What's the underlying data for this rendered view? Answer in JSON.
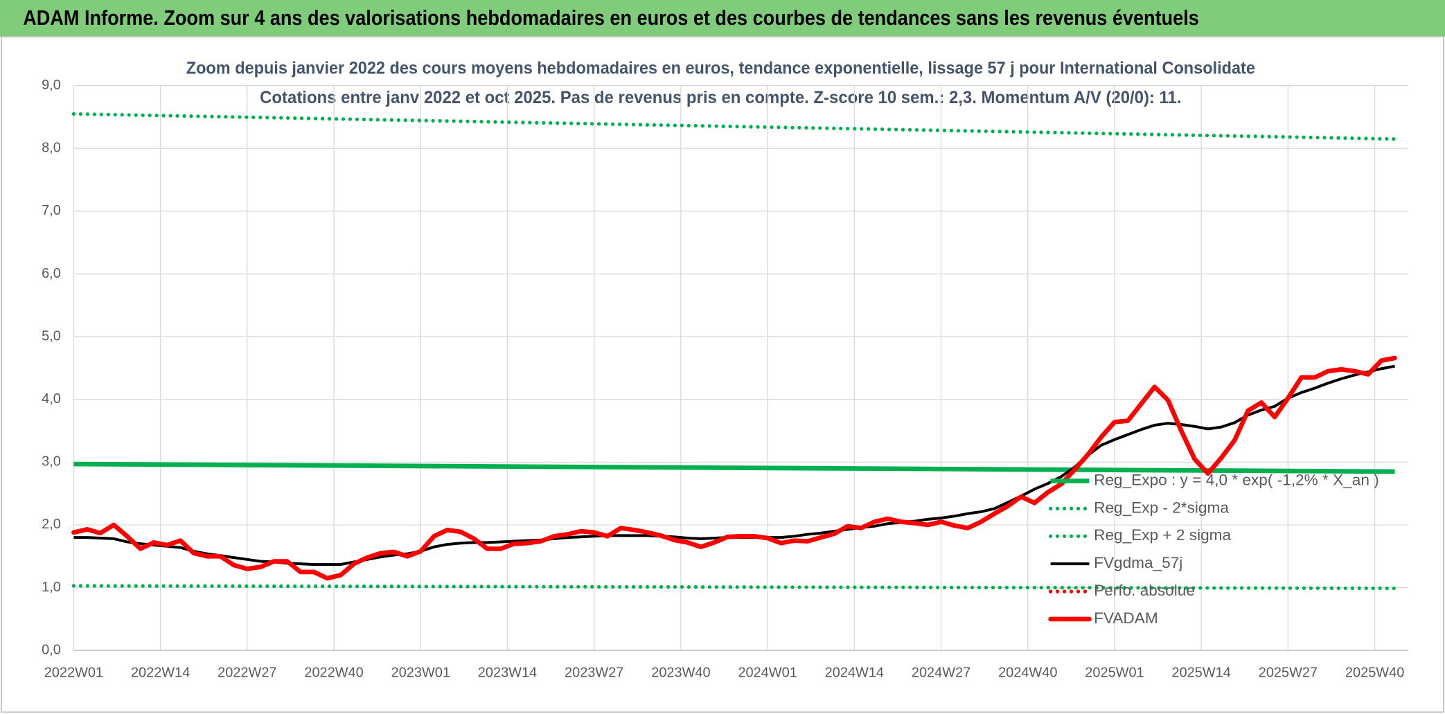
{
  "chart_data": {
    "type": "line",
    "title": "ADAM Informe. Zoom sur 4 ans des valorisations hebdomadaires en euros et des courbes de tendances sans les revenus éventuels",
    "subtitle": [
      "Zoom depuis janvier 2022 des cours moyens hebdomadaires en euros, tendance exponentielle, lissage 57 j pour International Consolidate",
      "Cotations entre janv 2022 et oct 2025. Pas de revenus pris en compte. Z-score 10 sem.: 2,3. Momentum A/V (20/0): 11."
    ],
    "x": [
      0,
      2,
      4,
      6,
      8,
      10,
      12,
      14,
      16,
      18,
      20,
      22,
      24,
      26,
      28,
      30,
      32,
      34,
      36,
      38,
      40,
      42,
      44,
      46,
      48,
      50,
      52,
      54,
      56,
      58,
      60,
      62,
      64,
      66,
      68,
      70,
      72,
      74,
      76,
      78,
      80,
      82,
      84,
      86,
      88,
      90,
      92,
      94,
      96,
      98,
      100,
      102,
      104,
      106,
      108,
      110,
      112,
      114,
      116,
      118,
      120,
      122,
      124,
      126,
      128,
      130,
      132,
      134,
      136,
      138,
      140,
      142,
      144,
      146,
      148,
      150,
      152,
      154,
      156,
      158,
      160,
      162,
      164,
      166,
      168,
      170,
      172,
      174,
      176,
      178,
      180,
      182,
      184,
      186,
      188,
      190,
      192,
      194,
      196,
      198
    ],
    "xlim": [
      0,
      200
    ],
    "xticks": [
      {
        "value": 0,
        "label": "2022W01"
      },
      {
        "value": 13,
        "label": "2022W14"
      },
      {
        "value": 26,
        "label": "2022W27"
      },
      {
        "value": 39,
        "label": "2022W40"
      },
      {
        "value": 52,
        "label": "2023W01"
      },
      {
        "value": 65,
        "label": "2023W14"
      },
      {
        "value": 78,
        "label": "2023W27"
      },
      {
        "value": 91,
        "label": "2023W40"
      },
      {
        "value": 104,
        "label": "2024W01"
      },
      {
        "value": 117,
        "label": "2024W14"
      },
      {
        "value": 130,
        "label": "2024W27"
      },
      {
        "value": 143,
        "label": "2024W40"
      },
      {
        "value": 156,
        "label": "2025W01"
      },
      {
        "value": 169,
        "label": "2025W14"
      },
      {
        "value": 182,
        "label": "2025W27"
      },
      {
        "value": 195,
        "label": "2025W40"
      }
    ],
    "ylim": [
      0,
      9
    ],
    "yticks": [
      {
        "value": 0,
        "label": "0,0"
      },
      {
        "value": 1,
        "label": "1,0"
      },
      {
        "value": 2,
        "label": "2,0"
      },
      {
        "value": 3,
        "label": "3,0"
      },
      {
        "value": 4,
        "label": "4,0"
      },
      {
        "value": 5,
        "label": "5,0"
      },
      {
        "value": 6,
        "label": "6,0"
      },
      {
        "value": 7,
        "label": "7,0"
      },
      {
        "value": 8,
        "label": "8,0"
      },
      {
        "value": 9,
        "label": "9,0"
      }
    ],
    "grid": true,
    "legend": "lower right",
    "series": [
      {
        "name": "Reg_Expo : y = 4,0 * exp( -1,2% *  X_an )",
        "color": "#00b050",
        "style": "solid",
        "x": [
          0,
          198
        ],
        "values": [
          2.97,
          2.85
        ]
      },
      {
        "name": "Reg_Exp - 2*sigma",
        "color": "#00b050",
        "style": "dotted",
        "x": [
          0,
          198
        ],
        "values": [
          1.03,
          0.99
        ]
      },
      {
        "name": "Reg_Exp + 2 sigma",
        "color": "#00b050",
        "style": "dotted",
        "x": [
          0,
          198
        ],
        "values": [
          8.55,
          8.15
        ]
      },
      {
        "name": "FVgdma_57j",
        "color": "#000000",
        "style": "solid",
        "values": [
          1.8,
          1.8,
          1.79,
          1.78,
          1.73,
          1.7,
          1.68,
          1.66,
          1.64,
          1.58,
          1.54,
          1.51,
          1.48,
          1.45,
          1.42,
          1.41,
          1.39,
          1.38,
          1.37,
          1.37,
          1.37,
          1.41,
          1.45,
          1.49,
          1.52,
          1.54,
          1.58,
          1.65,
          1.69,
          1.71,
          1.72,
          1.72,
          1.73,
          1.74,
          1.75,
          1.76,
          1.78,
          1.8,
          1.81,
          1.82,
          1.83,
          1.83,
          1.83,
          1.83,
          1.82,
          1.81,
          1.79,
          1.78,
          1.79,
          1.8,
          1.8,
          1.8,
          1.8,
          1.8,
          1.82,
          1.85,
          1.87,
          1.9,
          1.93,
          1.96,
          1.98,
          2.02,
          2.04,
          2.06,
          2.09,
          2.11,
          2.14,
          2.18,
          2.21,
          2.26,
          2.36,
          2.46,
          2.57,
          2.66,
          2.77,
          2.92,
          3.11,
          3.27,
          3.36,
          3.44,
          3.52,
          3.59,
          3.62,
          3.6,
          3.57,
          3.53,
          3.56,
          3.63,
          3.75,
          3.83,
          3.89,
          4.02,
          4.11,
          4.18,
          4.26,
          4.33,
          4.39,
          4.44,
          4.49,
          4.53
        ]
      },
      {
        "name": "Perfo. absolue",
        "color": "#ff0000",
        "style": "dotted",
        "x": [],
        "values": []
      },
      {
        "name": "FVADAM",
        "color": "#ff0000",
        "style": "thick",
        "values": [
          1.88,
          1.93,
          1.87,
          2.0,
          1.82,
          1.62,
          1.72,
          1.68,
          1.75,
          1.55,
          1.5,
          1.5,
          1.36,
          1.3,
          1.33,
          1.42,
          1.42,
          1.25,
          1.25,
          1.15,
          1.2,
          1.38,
          1.48,
          1.55,
          1.57,
          1.5,
          1.58,
          1.82,
          1.92,
          1.89,
          1.78,
          1.62,
          1.62,
          1.7,
          1.71,
          1.74,
          1.82,
          1.85,
          1.9,
          1.88,
          1.82,
          1.95,
          1.92,
          1.88,
          1.83,
          1.76,
          1.72,
          1.65,
          1.72,
          1.81,
          1.82,
          1.82,
          1.79,
          1.71,
          1.75,
          1.74,
          1.8,
          1.86,
          1.98,
          1.95,
          2.05,
          2.1,
          2.05,
          2.03,
          2.0,
          2.05,
          1.99,
          1.95,
          2.05,
          2.18,
          2.3,
          2.45,
          2.35,
          2.52,
          2.65,
          2.88,
          3.12,
          3.4,
          3.64,
          3.66,
          3.93,
          4.2,
          3.99,
          3.5,
          3.05,
          2.82,
          3.07,
          3.35,
          3.82,
          3.95,
          3.72,
          4.02,
          4.35,
          4.35,
          4.45,
          4.48,
          4.45,
          4.4,
          4.62,
          4.66
        ]
      }
    ]
  }
}
